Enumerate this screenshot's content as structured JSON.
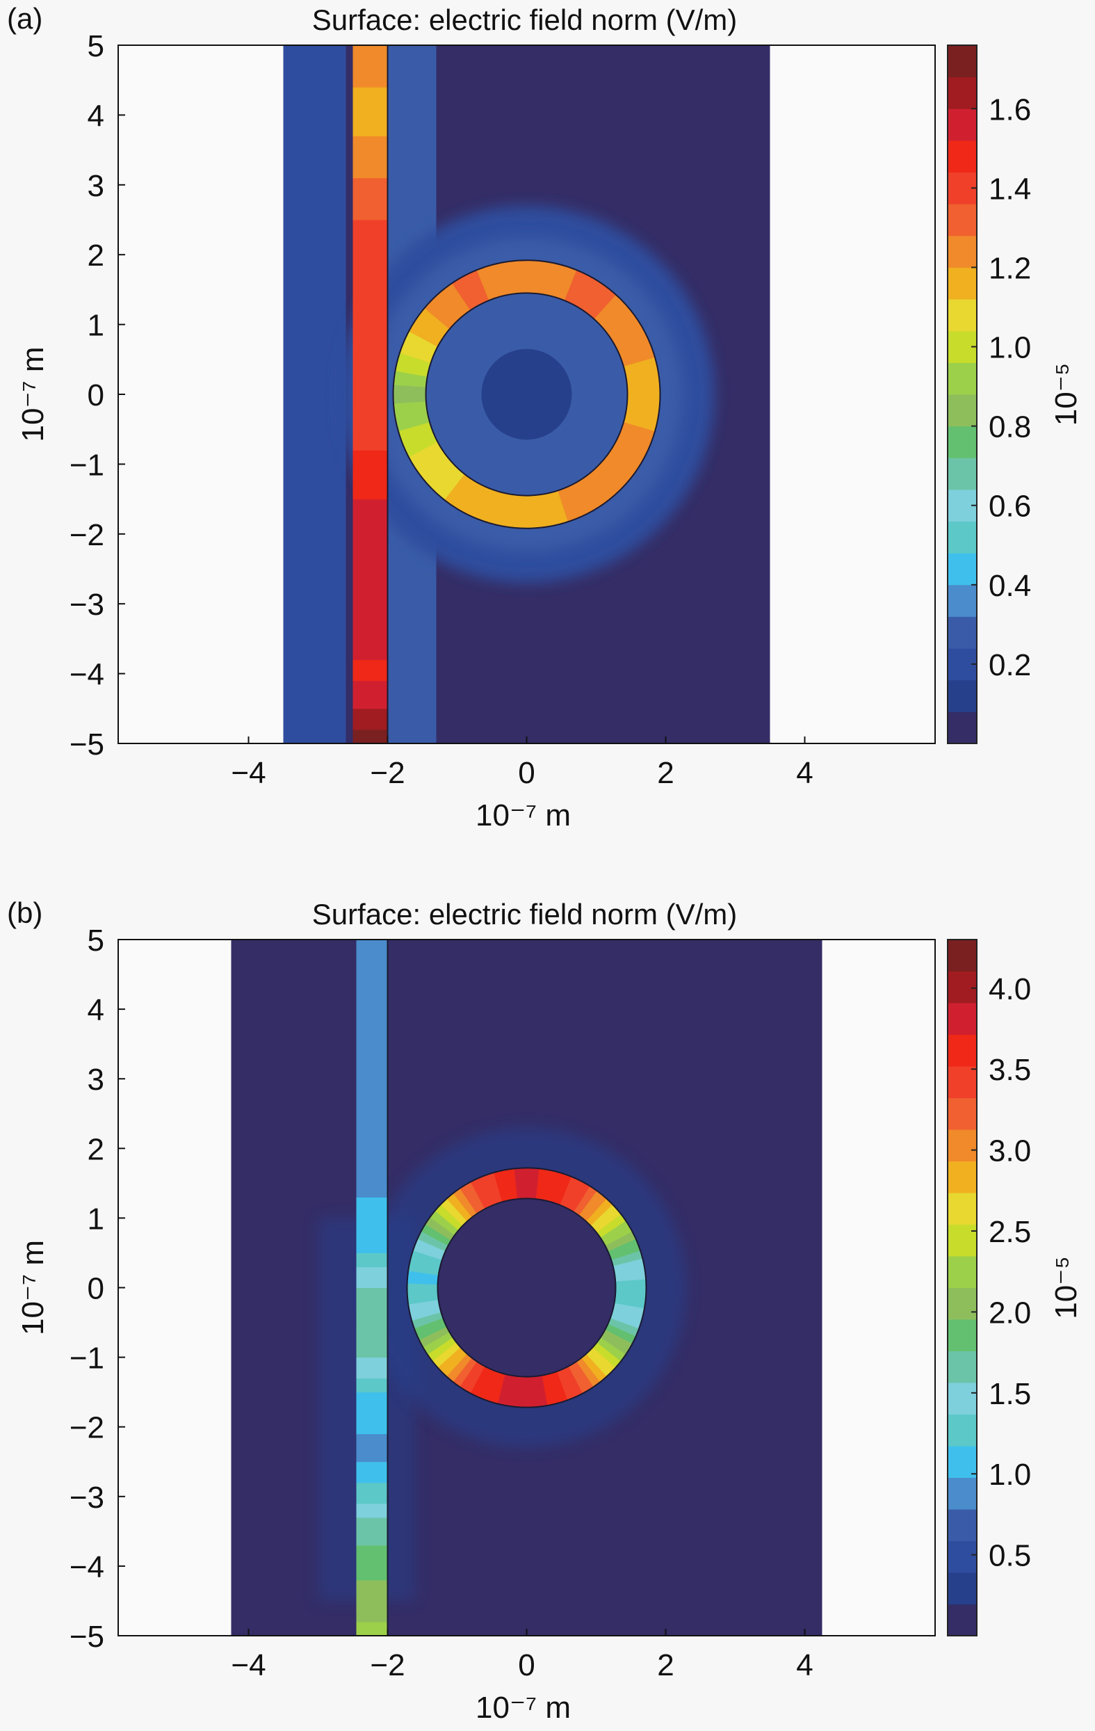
{
  "chart_data": [
    {
      "type": "heatmap",
      "panel_label": "(a)",
      "title": "Surface: electric field norm (V/m)",
      "xlabel": "10⁻⁷ m",
      "ylabel": "10⁻⁷ m",
      "xlim": [
        -5.875,
        5.875
      ],
      "ylim": [
        -5,
        5
      ],
      "xticks": [
        -4,
        -2,
        0,
        2,
        4
      ],
      "xtick_labels": [
        "−4",
        "−2",
        "0",
        "2",
        "4"
      ],
      "yticks": [
        5,
        4,
        3,
        2,
        1,
        0,
        -1,
        -2,
        -3,
        -4,
        -5
      ],
      "ytick_labels": [
        "5",
        "4",
        "3",
        "2",
        "1",
        "0",
        "−1",
        "−2",
        "−3",
        "−4",
        "−5"
      ],
      "colorbar": {
        "label": "10⁻⁵",
        "clim": [
          0,
          1.76
        ],
        "ticks": [
          0.2,
          0.4,
          0.6,
          0.8,
          1.0,
          1.2,
          1.4,
          1.6
        ],
        "tick_labels": [
          "0.2",
          "0.4",
          "0.6",
          "0.8",
          "1.0",
          "1.2",
          "1.4",
          "1.6"
        ]
      },
      "domain": {
        "x": [
          -3.5,
          3.5
        ],
        "y": [
          -5,
          5
        ]
      },
      "background_regions": [
        {
          "x": [
            -3.5,
            -2.6
          ],
          "y": [
            -5,
            5
          ],
          "value": 0.22
        },
        {
          "x": [
            -2.0,
            -1.3
          ],
          "y": [
            -5,
            5
          ],
          "value": 0.3
        }
      ],
      "ring_halo": [
        {
          "r": 2.7,
          "value": 0.16
        },
        {
          "r": 2.25,
          "value": 0.3
        }
      ],
      "ring_interior": [
        {
          "r": 1.45,
          "value": 0.3
        },
        {
          "r": 0.65,
          "value": 0.12
        }
      ],
      "waveguide": {
        "x": [
          -2.5,
          -2.0
        ],
        "y_profile": {
          "y": [
            5,
            4,
            3,
            2,
            1,
            0,
            -1,
            -2,
            -3,
            -4,
            -4.6,
            -5
          ],
          "value": [
            1.28,
            1.15,
            1.3,
            1.42,
            1.38,
            1.4,
            1.45,
            1.58,
            1.6,
            1.5,
            1.62,
            1.74
          ]
        }
      },
      "ring": {
        "center": [
          0,
          0
        ],
        "r_outer": 1.92,
        "r_inner": 1.45,
        "angle_profile": {
          "angle_deg": [
            0,
            30,
            60,
            90,
            120,
            150,
            180,
            210,
            240,
            270,
            300,
            330,
            360
          ],
          "value": [
            1.15,
            1.25,
            1.3,
            1.22,
            1.3,
            1.15,
            0.85,
            1.05,
            1.15,
            1.12,
            1.25,
            1.25,
            1.15
          ]
        }
      },
      "colormap": [
        "#342d66",
        "#26408c",
        "#2f4d9e",
        "#3a5ca8",
        "#4a8ccc",
        "#3fc0ec",
        "#5cc8c8",
        "#7ed0dc",
        "#6cc4a8",
        "#62c070",
        "#8ebe5c",
        "#9cd04a",
        "#c8dc2c",
        "#e8d830",
        "#f0b020",
        "#f08a2a",
        "#f06030",
        "#f0402a",
        "#f02818",
        "#d02030",
        "#a01c20",
        "#7a2020"
      ]
    },
    {
      "type": "heatmap",
      "panel_label": "(b)",
      "title": "Surface: electric field norm (V/m)",
      "xlabel": "10⁻⁷ m",
      "ylabel": "10⁻⁷ m",
      "xlim": [
        -5.875,
        5.875
      ],
      "ylim": [
        -5,
        5
      ],
      "xticks": [
        -4,
        -2,
        0,
        2,
        4
      ],
      "xtick_labels": [
        "−4",
        "−2",
        "0",
        "2",
        "4"
      ],
      "yticks": [
        5,
        4,
        3,
        2,
        1,
        0,
        -1,
        -2,
        -3,
        -4,
        -5
      ],
      "ytick_labels": [
        "5",
        "4",
        "3",
        "2",
        "1",
        "0",
        "−1",
        "−2",
        "−3",
        "−4",
        "−5"
      ],
      "colorbar": {
        "label": "10⁻⁵",
        "clim": [
          0,
          4.3
        ],
        "ticks": [
          0.5,
          1.0,
          1.5,
          2.0,
          2.5,
          3.0,
          3.5,
          4.0
        ],
        "tick_labels": [
          "0.5",
          "1.0",
          "1.5",
          "2.0",
          "2.5",
          "3.0",
          "3.5",
          "4.0"
        ]
      },
      "domain": {
        "x": [
          -4.25,
          4.25
        ],
        "y": [
          -5,
          5
        ]
      },
      "background_regions": [
        {
          "x": [
            -3.0,
            -1.6
          ],
          "y": [
            -4.5,
            1.0
          ],
          "value": 0.35
        }
      ],
      "ring_halo": [
        {
          "r": 2.3,
          "value": 0.35
        }
      ],
      "ring_interior": [
        {
          "r": 1.3,
          "value": 0.1
        }
      ],
      "waveguide": {
        "x": [
          -2.45,
          -2.0
        ],
        "y_profile": {
          "y": [
            5,
            2,
            0.6,
            0.2,
            -0.3,
            -1.0,
            -1.6,
            -2.4,
            -2.9,
            -3.3,
            -3.8,
            -4.3,
            -5
          ],
          "value": [
            0.85,
            0.85,
            1.1,
            1.5,
            1.65,
            1.6,
            1.1,
            0.9,
            1.25,
            1.55,
            1.8,
            2.0,
            2.2
          ]
        }
      },
      "ring": {
        "center": [
          0,
          0
        ],
        "r_outer": 1.72,
        "r_inner": 1.28,
        "angle_profile": {
          "angle_deg": [
            0,
            15,
            35,
            60,
            90,
            120,
            145,
            160,
            175,
            195,
            215,
            240,
            270,
            300,
            325,
            345,
            360
          ],
          "value": [
            1.3,
            1.6,
            2.4,
            3.4,
            3.8,
            3.3,
            2.1,
            1.4,
            1.1,
            1.5,
            2.4,
            3.5,
            3.9,
            3.3,
            2.2,
            1.4,
            1.3
          ]
        }
      },
      "colormap": [
        "#342d66",
        "#26408c",
        "#2f4d9e",
        "#3a5ca8",
        "#4a8ccc",
        "#3fc0ec",
        "#5cc8c8",
        "#7ed0dc",
        "#6cc4a8",
        "#62c070",
        "#8ebe5c",
        "#9cd04a",
        "#c8dc2c",
        "#e8d830",
        "#f0b020",
        "#f08a2a",
        "#f06030",
        "#f0402a",
        "#f02818",
        "#d02030",
        "#a01c20",
        "#7a2020"
      ]
    }
  ]
}
